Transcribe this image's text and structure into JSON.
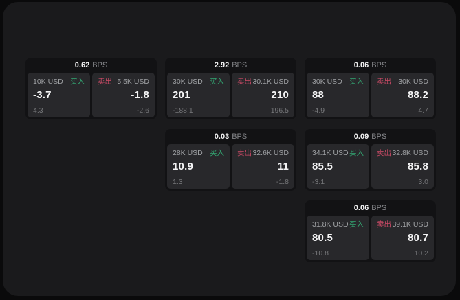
{
  "labels": {
    "bps_unit": "BPS",
    "buy": "买入",
    "sell": "卖出"
  },
  "colors": {
    "page_bg": "#0a0a0b",
    "window_bg": "#1a1a1c",
    "card_bg": "#121214",
    "tile_bg": "#28282b",
    "buy_accent": "#33a873",
    "sell_accent": "#cb4a66",
    "value_text": "#f4f4f5",
    "muted_text": "#9fa1a4",
    "faint_text": "#76777a"
  },
  "cards": [
    {
      "row": 1,
      "col": 1,
      "bps": "0.62",
      "buy": {
        "size": "10K USD",
        "price": "-3.7",
        "sub": "4.3"
      },
      "sell": {
        "size": "5.5K USD",
        "price": "-1.8",
        "sub": "-2.6"
      }
    },
    {
      "row": 1,
      "col": 2,
      "bps": "2.92",
      "buy": {
        "size": "30K USD",
        "price": "201",
        "sub": "-188.1"
      },
      "sell": {
        "size": "30.1K USD",
        "price": "210",
        "sub": "196.5"
      }
    },
    {
      "row": 1,
      "col": 3,
      "bps": "0.06",
      "buy": {
        "size": "30K USD",
        "price": "88",
        "sub": "-4.9"
      },
      "sell": {
        "size": "30K USD",
        "price": "88.2",
        "sub": "4.7"
      }
    },
    {
      "row": 2,
      "col": 2,
      "bps": "0.03",
      "buy": {
        "size": "28K USD",
        "price": "10.9",
        "sub": "1.3"
      },
      "sell": {
        "size": "32.6K USD",
        "price": "11",
        "sub": "-1.8"
      }
    },
    {
      "row": 2,
      "col": 3,
      "bps": "0.09",
      "buy": {
        "size": "34.1K USD",
        "price": "85.5",
        "sub": "-3.1"
      },
      "sell": {
        "size": "32.8K USD",
        "price": "85.8",
        "sub": "3.0"
      }
    },
    {
      "row": 3,
      "col": 3,
      "bps": "0.06",
      "buy": {
        "size": "31.8K USD",
        "price": "80.5",
        "sub": "-10.8"
      },
      "sell": {
        "size": "39.1K USD",
        "price": "80.7",
        "sub": "10.2"
      }
    }
  ]
}
